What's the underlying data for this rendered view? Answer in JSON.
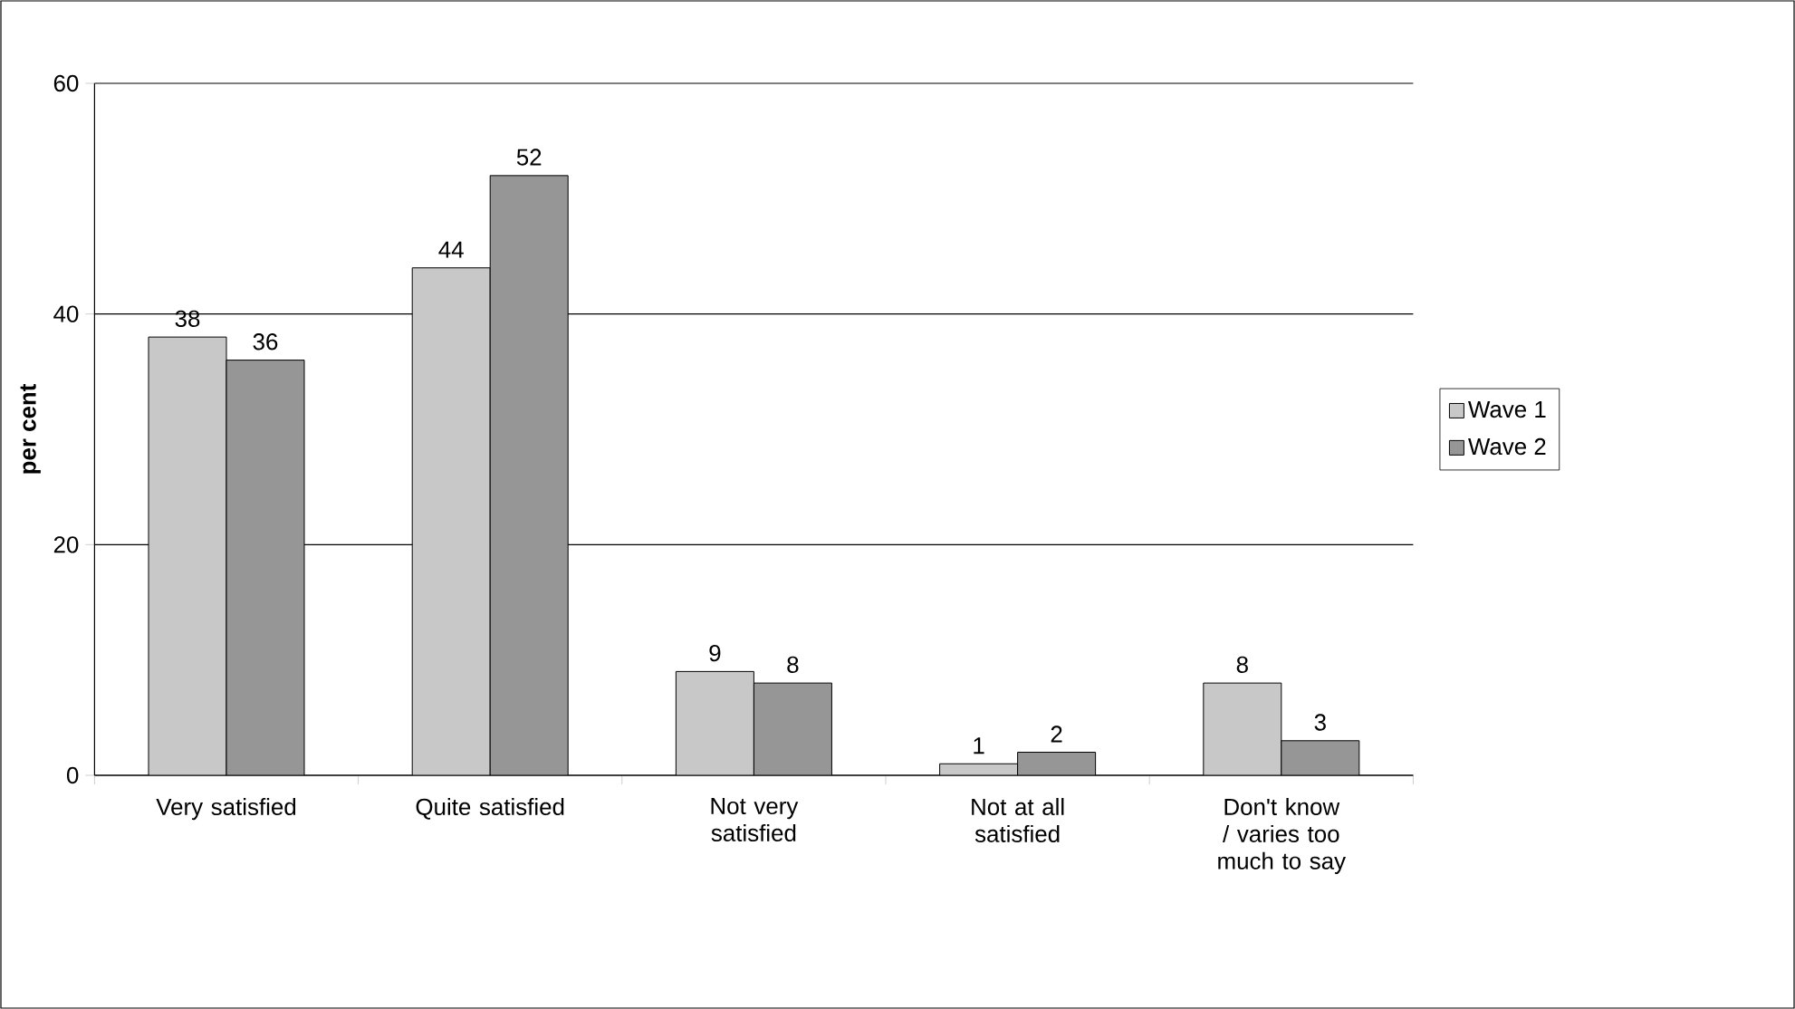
{
  "chart_data": {
    "type": "bar",
    "ylabel": "per cent",
    "categories": [
      "Very satisfied",
      "Quite satisfied",
      "Not very satisfied",
      "Not at all satisfied",
      "Don't know / varies too much to say"
    ],
    "series": [
      {
        "name": "Wave 1",
        "color": "#c8c8c8",
        "values": [
          38,
          44,
          9,
          1,
          8
        ]
      },
      {
        "name": "Wave 2",
        "color": "#969696",
        "values": [
          36,
          52,
          8,
          2,
          3
        ]
      }
    ],
    "ylim": [
      0,
      60
    ],
    "yticks": [
      0,
      20,
      40,
      60
    ],
    "grid": "y",
    "legend": "right",
    "data_labels": true
  }
}
